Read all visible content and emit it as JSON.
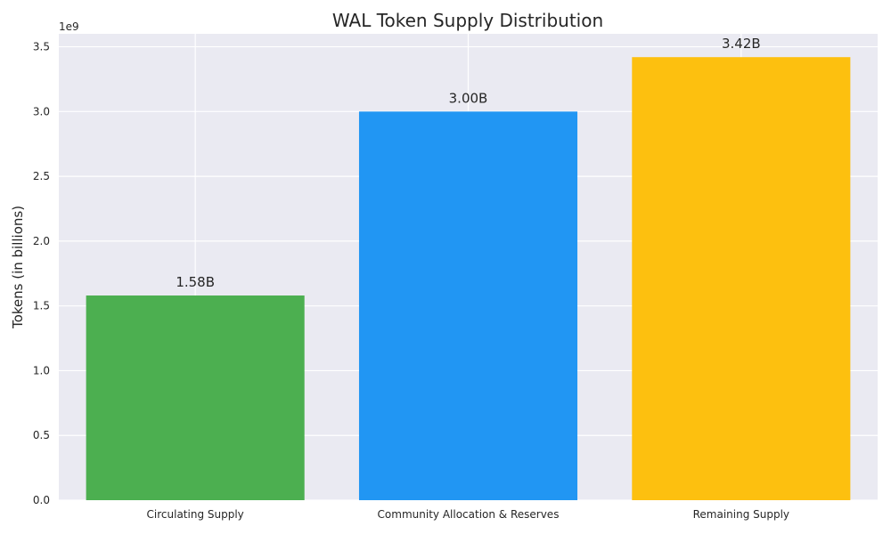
{
  "chart_data": {
    "type": "bar",
    "title": "WAL Token Supply Distribution",
    "xlabel": "",
    "ylabel": "Tokens (in billions)",
    "y_offset_label": "1e9",
    "categories": [
      "Circulating Supply",
      "Community Allocation & Reserves",
      "Remaining Supply"
    ],
    "values": [
      1580000000,
      3000000000,
      3420000000
    ],
    "data_labels": [
      "1.58B",
      "3.00B",
      "3.42B"
    ],
    "colors": [
      "#4caf50",
      "#2196f3",
      "#fdc00f"
    ],
    "ylim": [
      0,
      3600000000
    ],
    "yticks": [
      0,
      500000000,
      1000000000,
      1500000000,
      2000000000,
      2500000000,
      3000000000,
      3500000000
    ],
    "ytick_labels": [
      "0.0",
      "0.5",
      "1.0",
      "1.5",
      "2.0",
      "2.5",
      "3.0",
      "3.5"
    ],
    "grid": true,
    "background": "#eaeaf2"
  }
}
